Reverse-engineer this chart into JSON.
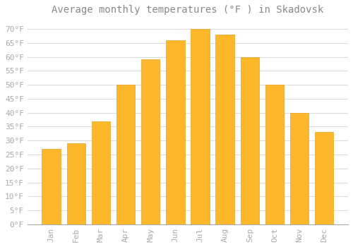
{
  "title": "Average monthly temperatures (°F ) in Skadovsk",
  "months": [
    "Jan",
    "Feb",
    "Mar",
    "Apr",
    "May",
    "Jun",
    "Jul",
    "Aug",
    "Sep",
    "Oct",
    "Nov",
    "Dec"
  ],
  "values": [
    27,
    29,
    37,
    50,
    59,
    66,
    70,
    68,
    60,
    50,
    40,
    33
  ],
  "bar_color": "#FDB72A",
  "bar_edge_color": "#E8A020",
  "background_color": "#FFFFFF",
  "grid_color": "#DDDDDD",
  "text_color": "#AAAAAA",
  "title_color": "#888888",
  "ylim": [
    0,
    73
  ],
  "yticks": [
    0,
    5,
    10,
    15,
    20,
    25,
    30,
    35,
    40,
    45,
    50,
    55,
    60,
    65,
    70
  ],
  "title_fontsize": 10,
  "tick_fontsize": 8,
  "bar_width": 0.75
}
